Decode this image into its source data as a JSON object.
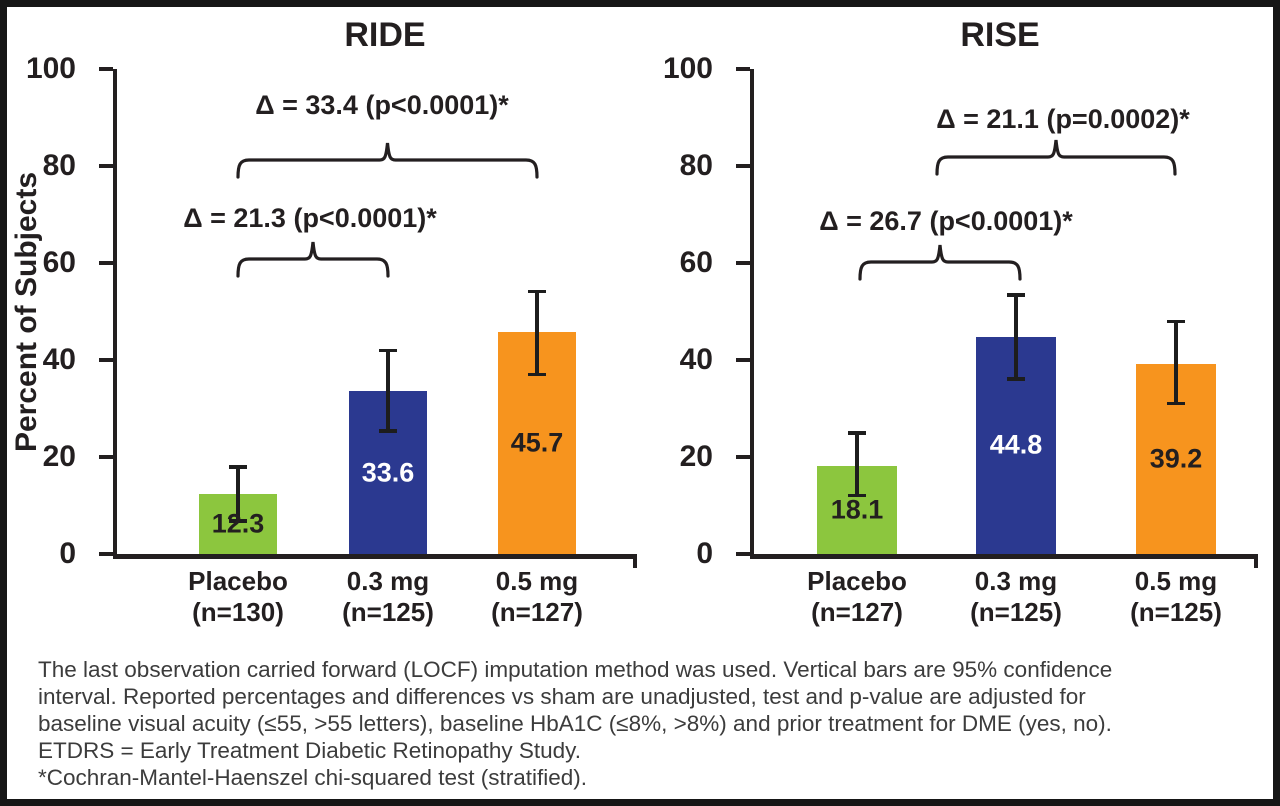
{
  "figure": {
    "footnote_lines": [
      "The last observation carried forward (LOCF) imputation method was used. Vertical bars are 95% confidence",
      "interval. Reported percentages and differences vs sham are unadjusted, test and p-value are adjusted for",
      "baseline visual acuity (≤55, >55 letters), baseline HbA1C (≤8%, >8%) and prior treatment for DME (yes, no).",
      "ETDRS = Early Treatment Diabetic Retinopathy Study.",
      "*Cochran-Mantel-Haenszel chi-squared test (stratified)."
    ]
  },
  "colors": {
    "placebo_green": "#8CC63E",
    "dose03_blue": "#2B3990",
    "dose05_orange": "#F7941E",
    "axis_black": "#231F20",
    "value_label_dark": "#231F20",
    "value_label_light": "#ffffff",
    "footnote_gray": "#3c3c3c"
  },
  "chart_data": [
    {
      "type": "bar",
      "title": "RIDE",
      "ylabel": "Percent of Subjects",
      "ylim": [
        0,
        100
      ],
      "yticks": [
        0,
        20,
        40,
        60,
        80,
        100
      ],
      "grid": false,
      "categories": [
        "Placebo",
        "0.3 mg",
        "0.5 mg"
      ],
      "category_sublabels": [
        "(n=130)",
        "(n=125)",
        "(n=127)"
      ],
      "values": [
        12.3,
        33.6,
        45.7
      ],
      "ci_low": [
        6.8,
        25.3,
        37.0
      ],
      "ci_high": [
        18.0,
        42.0,
        54.2
      ],
      "bar_color_keys": [
        "placebo_green",
        "dose03_blue",
        "dose05_orange"
      ],
      "value_label_styles": [
        "dark",
        "light",
        "dark"
      ],
      "annotations": [
        {
          "text": "Δ = 33.4 (p<0.0001)*",
          "from_category": 0,
          "to_category": 2
        },
        {
          "text": "Δ = 21.3 (p<0.0001)*",
          "from_category": 0,
          "to_category": 1
        }
      ]
    },
    {
      "type": "bar",
      "title": "RISE",
      "ylabel": "Percent of Subjects",
      "ylim": [
        0,
        100
      ],
      "yticks": [
        0,
        20,
        40,
        60,
        80,
        100
      ],
      "grid": false,
      "categories": [
        "Placebo",
        "0.3 mg",
        "0.5 mg"
      ],
      "category_sublabels": [
        "(n=127)",
        "(n=125)",
        "(n=125)"
      ],
      "values": [
        18.1,
        44.8,
        39.2
      ],
      "ci_low": [
        12.0,
        36.0,
        31.0
      ],
      "ci_high": [
        25.0,
        53.5,
        48.0
      ],
      "bar_color_keys": [
        "placebo_green",
        "dose03_blue",
        "dose05_orange"
      ],
      "value_label_styles": [
        "dark",
        "light",
        "dark"
      ],
      "annotations": [
        {
          "text": "Δ = 21.1 (p=0.0002)*",
          "from_category": 0,
          "to_category": 2
        },
        {
          "text": "Δ = 26.7 (p<0.0001)*",
          "from_category": 0,
          "to_category": 1
        }
      ]
    }
  ]
}
